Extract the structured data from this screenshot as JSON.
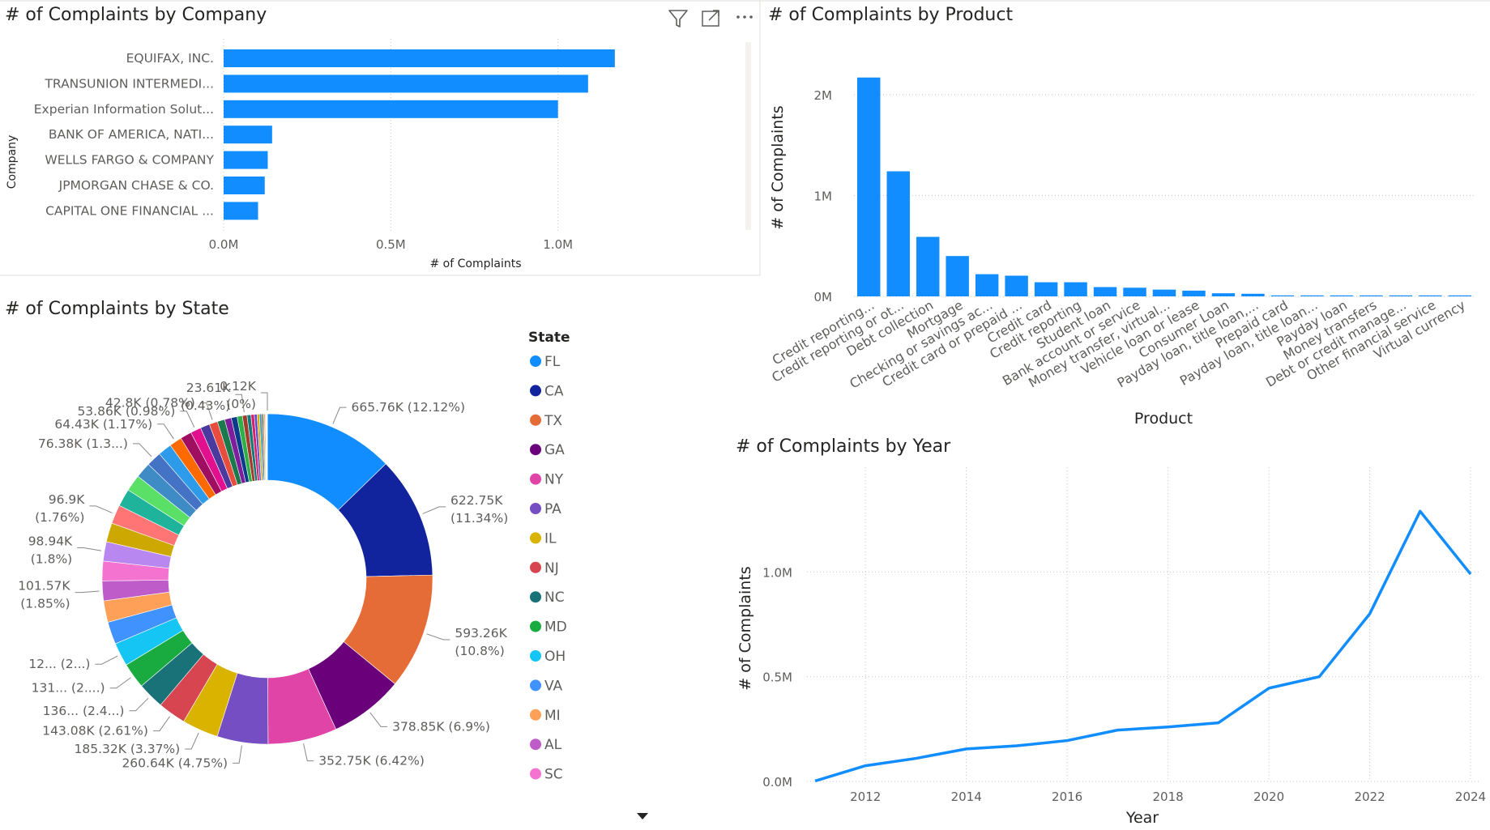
{
  "colors": {
    "accent": "#118DFF",
    "grid": "#c8c6c4",
    "text": "#252423",
    "muted": "#605e5c"
  },
  "icons": [
    "filter-icon",
    "focus-mode-icon",
    "more-options-icon",
    "scroll-down-arrow-icon"
  ],
  "chart_data": [
    {
      "id": "company",
      "type": "bar",
      "orientation": "horizontal",
      "title": "# of Complaints by Company",
      "ylabel": "Company",
      "xlabel": "# of Complaints",
      "categories": [
        "EQUIFAX, INC.",
        "TRANSUNION INTERMEDI...",
        "Experian Information Solut...",
        "BANK OF AMERICA, NATI...",
        "WELLS FARGO & COMPANY",
        "JPMORGAN CHASE & CO.",
        "CAPITAL ONE FINANCIAL ..."
      ],
      "values": [
        1170000,
        1090000,
        1000000,
        145000,
        132000,
        123000,
        103000
      ],
      "xticks": [
        "0.0M",
        "0.5M",
        "1.0M"
      ],
      "xtick_values": [
        0,
        500000,
        1000000
      ],
      "xlim": [
        0,
        1260000
      ],
      "grid": true
    },
    {
      "id": "product",
      "type": "bar",
      "title": "# of Complaints by Product",
      "xlabel": "Product",
      "ylabel": "# of Complaints",
      "categories": [
        "Credit reporting...",
        "Credit reporting or ot...",
        "Debt collection",
        "Mortgage",
        "Checking or savings ac...",
        "Credit card or prepaid ...",
        "Credit card",
        "Credit reporting",
        "Student loan",
        "Bank account or service",
        "Money transfer, virtual...",
        "Vehicle loan or lease",
        "Consumer Loan",
        "Payday loan, title loan,...",
        "Prepaid card",
        "Payday loan, title loan...",
        "Payday loan",
        "Money transfers",
        "Debt or credit manage...",
        "Other financial service",
        "Virtual currency"
      ],
      "values": [
        2170000,
        1240000,
        590000,
        400000,
        220000,
        205000,
        140000,
        140000,
        92000,
        86000,
        67000,
        57000,
        31000,
        26000,
        7000,
        5000,
        5000,
        5000,
        4000,
        2000,
        1000
      ],
      "yticks": [
        "0M",
        "1M",
        "2M"
      ],
      "ytick_values": [
        0,
        1000000,
        2000000
      ],
      "ylim": [
        0,
        2200000
      ],
      "grid": true
    },
    {
      "id": "state",
      "type": "pie",
      "style": "donut",
      "title": "# of Complaints by State",
      "legend_title": "State",
      "legend_position": "right",
      "legend": [
        "FL",
        "CA",
        "TX",
        "GA",
        "NY",
        "PA",
        "IL",
        "NJ",
        "NC",
        "MD",
        "OH",
        "VA",
        "MI",
        "AL",
        "SC"
      ],
      "legend_colors": [
        "#118DFF",
        "#12239E",
        "#E66C37",
        "#6B007B",
        "#E044A7",
        "#744EC2",
        "#D9B300",
        "#D64550",
        "#197278",
        "#1AAB40",
        "#15C6F4",
        "#4092FF",
        "#FFA058",
        "#BE5DC9",
        "#F472D0"
      ],
      "slices": [
        {
          "value": 665.76,
          "color": "#118DFF"
        },
        {
          "value": 622.75,
          "color": "#12239E"
        },
        {
          "value": 593.26,
          "color": "#E66C37"
        },
        {
          "value": 378.85,
          "color": "#6B007B"
        },
        {
          "value": 352.75,
          "color": "#E044A7"
        },
        {
          "value": 260.64,
          "color": "#744EC2"
        },
        {
          "value": 185.32,
          "color": "#D9B300"
        },
        {
          "value": 143.08,
          "color": "#D64550"
        },
        {
          "value": 136.0,
          "color": "#197278"
        },
        {
          "value": 131.0,
          "color": "#1AAB40"
        },
        {
          "value": 120.0,
          "color": "#15C6F4"
        },
        {
          "value": 115.0,
          "color": "#4092FF"
        },
        {
          "value": 110.0,
          "color": "#FFA058"
        },
        {
          "value": 101.57,
          "color": "#BE5DC9"
        },
        {
          "value": 100.0,
          "color": "#F472D0"
        },
        {
          "value": 98.94,
          "color": "#B887F0"
        },
        {
          "value": 97.5,
          "color": "#CDA800"
        },
        {
          "value": 96.9,
          "color": "#FF7575"
        },
        {
          "value": 90.0,
          "color": "#1FB39C"
        },
        {
          "value": 85.0,
          "color": "#5BE067"
        },
        {
          "value": 80.0,
          "color": "#3F8BC6"
        },
        {
          "value": 76.38,
          "color": "#4472C4"
        },
        {
          "value": 70.0,
          "color": "#2E9BEA"
        },
        {
          "value": 64.43,
          "color": "#FF6A00"
        },
        {
          "value": 58.0,
          "color": "#A00E62"
        },
        {
          "value": 53.86,
          "color": "#E0108E"
        },
        {
          "value": 48.0,
          "color": "#4B3A9E"
        },
        {
          "value": 42.8,
          "color": "#E84C3D"
        },
        {
          "value": 38.0,
          "color": "#1A7A4C"
        },
        {
          "value": 34.0,
          "color": "#7E1E9C"
        },
        {
          "value": 30.0,
          "color": "#0B3C8A"
        },
        {
          "value": 27.0,
          "color": "#2DB046"
        },
        {
          "value": 23.61,
          "color": "#A23A2E"
        },
        {
          "value": 20.0,
          "color": "#147A79"
        },
        {
          "value": 17.0,
          "color": "#D6216E"
        },
        {
          "value": 14.0,
          "color": "#5A4FCF"
        },
        {
          "value": 12.0,
          "color": "#E8A700"
        },
        {
          "value": 10.0,
          "color": "#0FA3B1"
        },
        {
          "value": 8.0,
          "color": "#8F2D56"
        },
        {
          "value": 6.5,
          "color": "#7DBE3A"
        },
        {
          "value": 5.0,
          "color": "#F26B1D"
        },
        {
          "value": 4.0,
          "color": "#C9A9E6"
        },
        {
          "value": 3.0,
          "color": "#F4D03F"
        },
        {
          "value": 2.2,
          "color": "#6A6A6A"
        },
        {
          "value": 1.5,
          "color": "#8E9AAF"
        },
        {
          "value": 0.12,
          "color": "#E6C200"
        }
      ],
      "labels": [
        {
          "text": "665.76K (12.12%)",
          "slice": 0
        },
        {
          "text": "622.75K",
          "text2": "(11.34%)",
          "slice": 1
        },
        {
          "text": "593.26K",
          "text2": "(10.8%)",
          "slice": 2
        },
        {
          "text": "378.85K (6.9%)",
          "slice": 3
        },
        {
          "text": "352.75K (6.42%)",
          "slice": 4
        },
        {
          "text": "260.64K (4.75%)",
          "slice": 5
        },
        {
          "text": "185.32K (3.37%)",
          "slice": 6
        },
        {
          "text": "143.08K (2.61%)",
          "slice": 7
        },
        {
          "text": "136... (2.4...)",
          "slice": 8
        },
        {
          "text": "131... (2....)",
          "slice": 9
        },
        {
          "text": "12... (2...)",
          "slice": 10
        },
        {
          "text": "101.57K",
          "text2": "(1.85%)",
          "slice": 13
        },
        {
          "text": "98.94K",
          "text2": "(1.8%)",
          "slice": 15
        },
        {
          "text": "96.9K",
          "text2": "(1.76%)",
          "slice": 17
        },
        {
          "text": "76.38K (1.3...)",
          "slice": 21
        },
        {
          "text": "64.43K (1.17%)",
          "slice": 23
        },
        {
          "text": "53.86K (0.98%)",
          "slice": 25
        },
        {
          "text": "42.8K (0.78%)",
          "slice": 27
        },
        {
          "text": "23.61K",
          "text2": "(0.43%)",
          "slice": 32
        },
        {
          "text": "0.12K",
          "text2": "(0%)",
          "slice": 45
        }
      ]
    },
    {
      "id": "year",
      "type": "line",
      "title": "# of Complaints by Year",
      "xlabel": "Year",
      "ylabel": "# of Complaints",
      "x": [
        2011,
        2012,
        2013,
        2014,
        2015,
        2016,
        2017,
        2018,
        2019,
        2020,
        2021,
        2022,
        2023,
        2024
      ],
      "values": [
        2000,
        75000,
        110000,
        155000,
        170000,
        195000,
        245000,
        260000,
        280000,
        445000,
        500000,
        800000,
        1290000,
        990000
      ],
      "xticks": [
        "2012",
        "2014",
        "2016",
        "2018",
        "2020",
        "2022",
        "2024"
      ],
      "xtick_values": [
        2012,
        2014,
        2016,
        2018,
        2020,
        2022,
        2024
      ],
      "xlim": [
        2011,
        2024
      ],
      "yticks": [
        "0.0M",
        "0.5M",
        "1.0M"
      ],
      "ytick_values": [
        0,
        500000,
        1000000
      ],
      "ylim": [
        0,
        1500000
      ],
      "grid": true
    }
  ]
}
